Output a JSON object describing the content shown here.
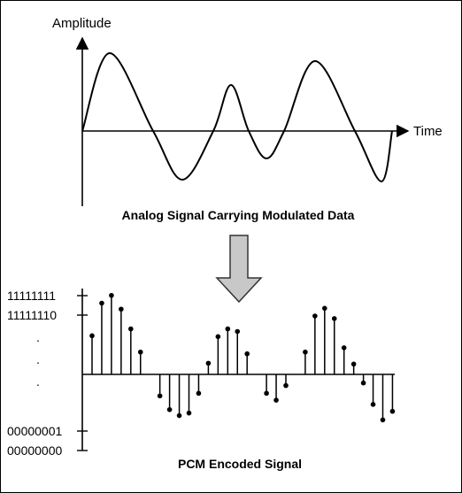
{
  "analog": {
    "y_axis_label": "Amplitude",
    "x_axis_label": "Time",
    "caption": "Analog Signal Carrying Modulated Data"
  },
  "pcm": {
    "caption": "PCM Encoded Signal",
    "y_tick_labels": [
      "11111111",
      "11111110",
      ".",
      ".",
      ".",
      "00000001",
      "00000000"
    ],
    "samples": [
      0.45,
      0.83,
      0.92,
      0.76,
      0.53,
      0.26,
      0,
      -0.25,
      -0.41,
      -0.48,
      -0.45,
      -0.22,
      0.13,
      0.44,
      0.53,
      0.5,
      0.24,
      0,
      -0.22,
      -0.3,
      -0.13,
      0,
      0.26,
      0.68,
      0.77,
      0.65,
      0.31,
      0.12,
      -0.1,
      -0.35,
      -0.53,
      -0.43
    ]
  },
  "colors": {
    "ink": "#000000",
    "arrow_fill": "#c8c8c8",
    "arrow_stroke": "#333333"
  }
}
